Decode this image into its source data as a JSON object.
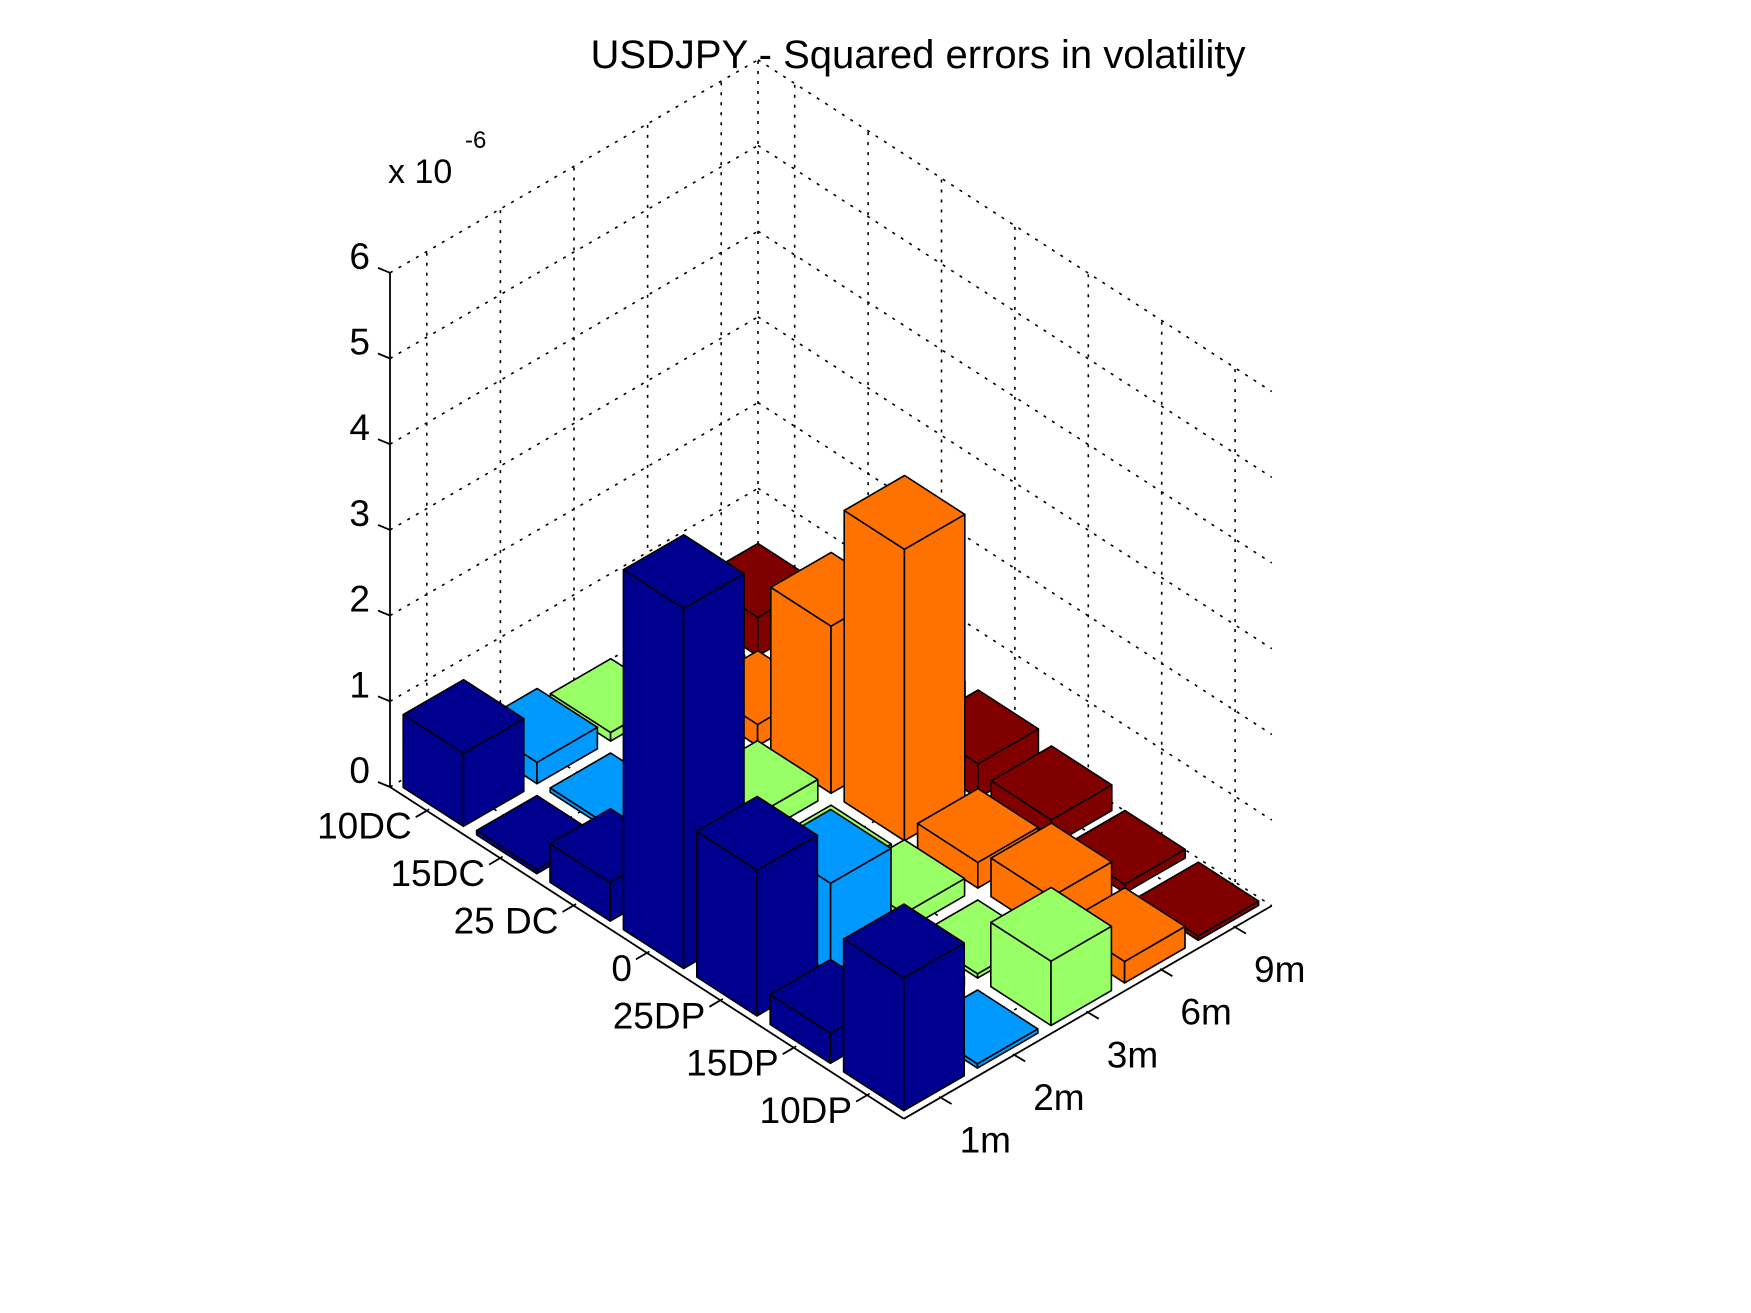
{
  "chart_data": {
    "type": "bar3d",
    "title": "USDJPY - Squared errors in volatility",
    "z_multiplier": {
      "base": "x 10",
      "exponent": "-6"
    },
    "zlim": [
      0,
      6
    ],
    "z_ticks": [
      "0",
      "1",
      "2",
      "3",
      "4",
      "5",
      "6"
    ],
    "x_categories": [
      "10DC",
      "15DC",
      "25 DC",
      "0",
      "25DP",
      "15DP",
      "10DP"
    ],
    "y_categories": [
      "1m",
      "2m",
      "3m",
      "6m",
      "9m"
    ],
    "grid": true,
    "series": [
      {
        "category": "1m",
        "color": "#00008F",
        "values": [
          0.85,
          0.05,
          0.45,
          4.2,
          1.7,
          0.35,
          1.55
        ]
      },
      {
        "category": "2m",
        "color": "#0099FF",
        "values": [
          0.25,
          0.05,
          0.1,
          0.02,
          1.05,
          0.1,
          0.05
        ]
      },
      {
        "category": "3m",
        "color": "#99FF66",
        "values": [
          0.1,
          0.02,
          0.25,
          0.05,
          0.2,
          0.05,
          0.75
        ]
      },
      {
        "category": "6m",
        "color": "#FF7200",
        "values": [
          0.1,
          0.25,
          1.95,
          3.4,
          0.3,
          0.45,
          0.25
        ]
      },
      {
        "category": "9m",
        "color": "#800000",
        "values": [
          0.45,
          0.05,
          0.4,
          0.4,
          0.3,
          0.1,
          0.05
        ]
      }
    ]
  }
}
